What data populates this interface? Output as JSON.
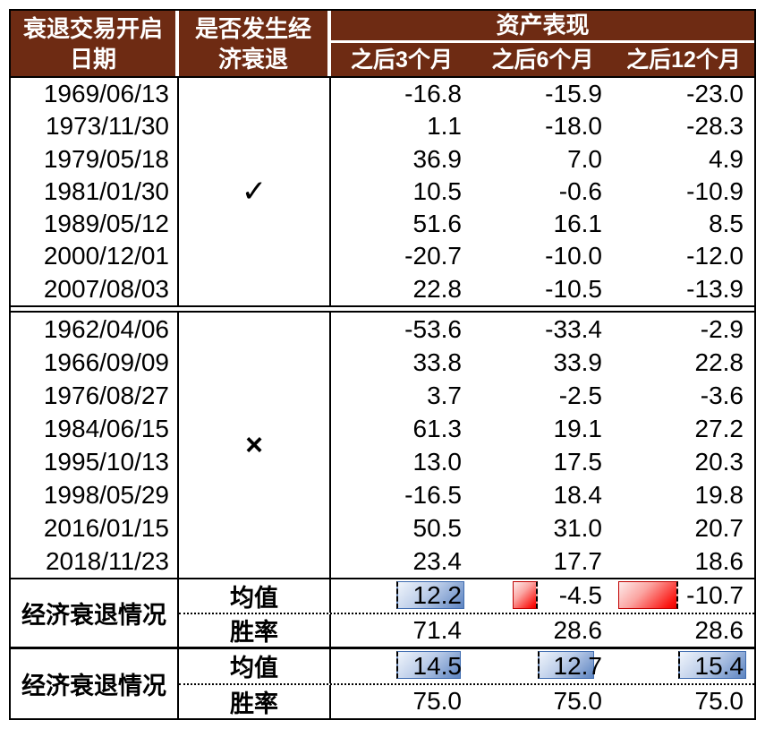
{
  "header": {
    "date_col": {
      "line1": "衰退交易开启",
      "line2": "日期"
    },
    "recession_col": {
      "line1": "是否发生经",
      "line2": "济衰退"
    },
    "asset_col": {
      "title": "资产表现",
      "subcols": [
        "之后3个月",
        "之后6个月",
        "之后12个月"
      ]
    }
  },
  "groups": [
    {
      "mark": "✓",
      "rows": [
        {
          "date": "1969/06/13",
          "values": [
            -16.8,
            -15.9,
            -23.0
          ]
        },
        {
          "date": "1973/11/30",
          "values": [
            1.1,
            -18.0,
            -28.3
          ]
        },
        {
          "date": "1979/05/18",
          "values": [
            36.9,
            7.0,
            4.9
          ]
        },
        {
          "date": "1981/01/30",
          "values": [
            10.5,
            -0.6,
            -10.9
          ]
        },
        {
          "date": "1989/05/12",
          "values": [
            51.6,
            16.1,
            8.5
          ]
        },
        {
          "date": "2000/12/01",
          "values": [
            -20.7,
            -10.0,
            -12.0
          ]
        },
        {
          "date": "2007/08/03",
          "values": [
            22.8,
            -10.5,
            -13.9
          ]
        }
      ]
    },
    {
      "mark": "×",
      "rows": [
        {
          "date": "1962/04/06",
          "values": [
            -53.6,
            -33.4,
            -2.9
          ]
        },
        {
          "date": "1966/09/09",
          "values": [
            33.8,
            33.9,
            22.8
          ]
        },
        {
          "date": "1976/08/27",
          "values": [
            3.7,
            -2.5,
            -3.6
          ]
        },
        {
          "date": "1984/06/15",
          "values": [
            61.3,
            19.1,
            27.2
          ]
        },
        {
          "date": "1995/10/13",
          "values": [
            13.0,
            17.5,
            20.3
          ]
        },
        {
          "date": "1998/05/29",
          "values": [
            -16.5,
            18.4,
            19.8
          ]
        },
        {
          "date": "2016/01/15",
          "values": [
            50.5,
            31.0,
            20.7
          ]
        },
        {
          "date": "2018/11/23",
          "values": [
            23.4,
            17.7,
            18.6
          ]
        }
      ]
    }
  ],
  "summaries": [
    {
      "label": "经济衰退情况",
      "mean_label": "均值",
      "win_label": "胜率",
      "mean": [
        12.2,
        -4.5,
        -10.7
      ],
      "win": [
        71.4,
        28.6,
        28.6
      ]
    },
    {
      "label": "经济衰退情况",
      "mean_label": "均值",
      "win_label": "胜率",
      "mean": [
        14.5,
        12.7,
        15.4
      ],
      "win": [
        75.0,
        75.0,
        75.0
      ]
    }
  ],
  "colors": {
    "header-bg": "#6E2B13",
    "bar-blue": "#5D84C1",
    "bar-blue-border": "#3F6CB0",
    "bar-red": "#FB1410",
    "bar-red-border": "#C00000"
  },
  "chart_data": {
    "type": "table",
    "title": "资产表现",
    "columns": [
      "衰退交易开启日期",
      "是否发生经济衰退",
      "之后3个月",
      "之后6个月",
      "之后12个月"
    ],
    "rows": [
      [
        "1969/06/13",
        "✓",
        -16.8,
        -15.9,
        -23.0
      ],
      [
        "1973/11/30",
        "✓",
        1.1,
        -18.0,
        -28.3
      ],
      [
        "1979/05/18",
        "✓",
        36.9,
        7.0,
        4.9
      ],
      [
        "1981/01/30",
        "✓",
        10.5,
        -0.6,
        -10.9
      ],
      [
        "1989/05/12",
        "✓",
        51.6,
        16.1,
        8.5
      ],
      [
        "2000/12/01",
        "✓",
        -20.7,
        -10.0,
        -12.0
      ],
      [
        "2007/08/03",
        "✓",
        22.8,
        -10.5,
        -13.9
      ],
      [
        "1962/04/06",
        "×",
        -53.6,
        -33.4,
        -2.9
      ],
      [
        "1966/09/09",
        "×",
        33.8,
        33.9,
        22.8
      ],
      [
        "1976/08/27",
        "×",
        3.7,
        -2.5,
        -3.6
      ],
      [
        "1984/06/15",
        "×",
        61.3,
        19.1,
        27.2
      ],
      [
        "1995/10/13",
        "×",
        13.0,
        17.5,
        20.3
      ],
      [
        "1998/05/29",
        "×",
        -16.5,
        18.4,
        19.8
      ],
      [
        "2016/01/15",
        "×",
        50.5,
        31.0,
        20.7
      ],
      [
        "2018/11/23",
        "×",
        23.4,
        17.7,
        18.6
      ],
      [
        "经济衰退情况",
        "均值",
        12.2,
        -4.5,
        -10.7
      ],
      [
        "经济衰退情况",
        "胜率",
        71.4,
        28.6,
        28.6
      ],
      [
        "经济衰退情况",
        "均值",
        14.5,
        12.7,
        15.4
      ],
      [
        "经济衰退情况",
        "胜率",
        75.0,
        75.0,
        75.0
      ]
    ],
    "data_bars": {
      "positive_color": "blue-gradient",
      "negative_color": "red-gradient",
      "axis_style": "dashed"
    }
  }
}
